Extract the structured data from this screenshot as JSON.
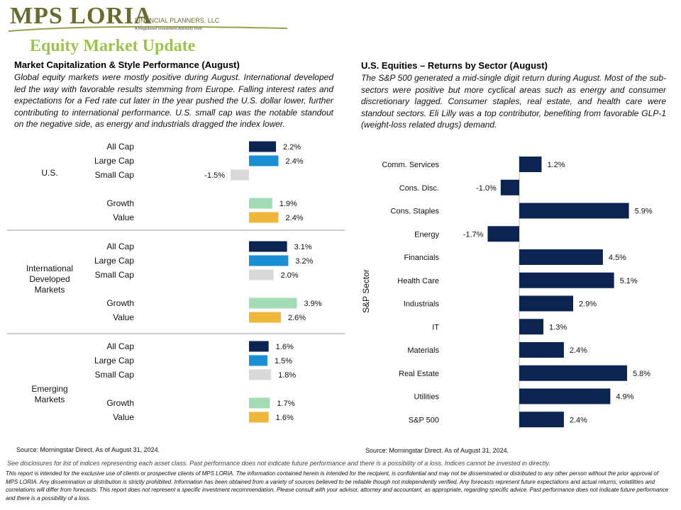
{
  "logo": {
    "name": "MPS LORIA",
    "sub": "FINANCIAL PLANNERS, LLC",
    "tagline": "A Registered Investment Advisory Firm"
  },
  "page_title": "Equity Market Update",
  "left": {
    "title": "Market Capitalization & Style Performance (August)",
    "body": "Global equity markets were mostly positive during August. International developed led the way with favorable results stemming from Europe. Falling interest rates and expectations for a Fed rate cut later in the year pushed the U.S. dollar lower, further contributing to international performance. U.S. small cap was the notable standout on the negative side, as energy and industrials dragged the index lower.",
    "source": "Source: Morningstar Direct. As of August 31, 2024."
  },
  "right": {
    "title": "U.S. Equities – Returns by Sector (August)",
    "body": "The S&P 500 generated a mid-single digit return during August. Most of the sub-sectors were positive but more cyclical areas such as energy and consumer discretionary lagged. Consumer staples, real estate, and health care were standout sectors. Eli Lilly was a top contributor, benefiting from favorable GLP-1 (weight-loss related drugs) demand.",
    "source": "Source: Morningstar Direct. As of August 31, 2024."
  },
  "disclaimer1": "See disclosures for list of indices representing each asset class. Past performance does not indicate future performance and there is a possibility of a loss. Indices cannot be invested in directly.",
  "disclaimer2": "This report is intended for the exclusive use of clients or prospective clients of MPS LORIA. The information contained herein is intended for the recipient, is confidential and may not be disseminated or distributed to any other person without the prior approval of MPS LORIA. Any dissemination or distribution is strictly prohibited. Information has been obtained from a variety of sources believed to be reliable though not independently verified. Any forecasts represent future expectations and actual returns; volatilities and correlations will differ from forecasts. This report does not represent a specific investment recommendation. Please consult with your advisor, attorney and accountant, as appropriate, regarding specific advice. Past performance does not indicate future performance and there is a possibility of a loss.",
  "colors": {
    "all_cap": "#0b2550",
    "large_cap": "#1b8fd4",
    "small_cap": "#d9d9d9",
    "growth": "#a3dbb4",
    "value": "#f0b73a",
    "sector": "#0b2550"
  },
  "chart_data": [
    {
      "type": "bar",
      "orientation": "horizontal",
      "title": "Market Capitalization & Style Performance (August)",
      "groups": [
        {
          "name": "U.S.",
          "categories": [
            "All Cap",
            "Large Cap",
            "Small Cap",
            "Growth",
            "Value"
          ],
          "values": [
            2.2,
            2.4,
            -1.5,
            1.9,
            2.4
          ],
          "labels": [
            "2.2%",
            "2.4%",
            "-1.5%",
            "1.9%",
            "2.4%"
          ]
        },
        {
          "name": "International Developed Markets",
          "categories": [
            "All Cap",
            "Large Cap",
            "Small Cap",
            "Growth",
            "Value"
          ],
          "values": [
            3.1,
            3.2,
            2.0,
            3.9,
            2.6
          ],
          "labels": [
            "3.1%",
            "3.2%",
            "2.0%",
            "3.9%",
            "2.6%"
          ]
        },
        {
          "name": "Emerging Markets",
          "categories": [
            "All Cap",
            "Large Cap",
            "Small Cap",
            "Growth",
            "Value"
          ],
          "values": [
            1.6,
            1.5,
            1.8,
            1.7,
            1.6
          ],
          "labels": [
            "1.6%",
            "1.5%",
            "1.8%",
            "1.7%",
            "1.6%"
          ]
        }
      ]
    },
    {
      "type": "bar",
      "orientation": "horizontal",
      "title": "U.S. Equities – Returns by Sector (August)",
      "ylabel": "S&P Sector",
      "categories": [
        "Comm. Services",
        "Cons. Disc.",
        "Cons. Staples",
        "Energy",
        "Financials",
        "Health Care",
        "Industrials",
        "IT",
        "Materials",
        "Real Estate",
        "Utilities",
        "S&P 500"
      ],
      "values": [
        1.2,
        -1.0,
        5.9,
        -1.7,
        4.5,
        5.1,
        2.9,
        1.3,
        2.4,
        5.8,
        4.9,
        2.4
      ],
      "labels": [
        "1.2%",
        "-1.0%",
        "5.9%",
        "-1.7%",
        "4.5%",
        "5.1%",
        "2.9%",
        "1.3%",
        "2.4%",
        "5.8%",
        "4.9%",
        "2.4%"
      ]
    }
  ]
}
